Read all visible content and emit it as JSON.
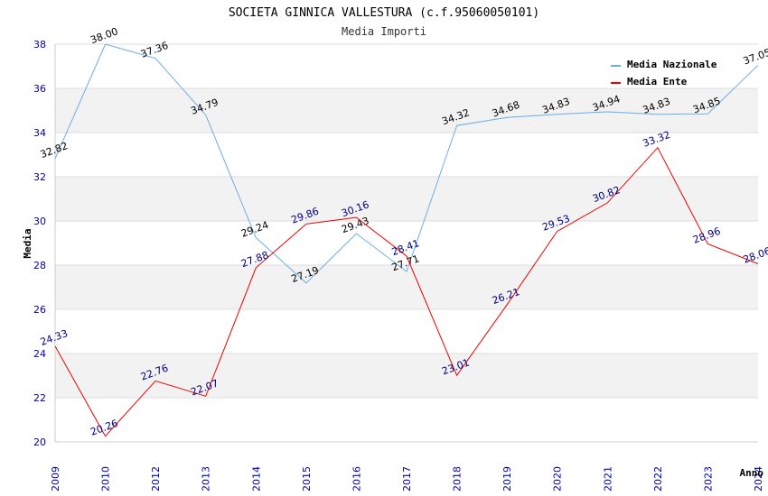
{
  "chart_data": {
    "type": "line",
    "title": "SOCIETA GINNICA VALLESTURA (c.f.95060050101)",
    "subtitle": "Media Importi",
    "xlabel": "Anno",
    "ylabel": "Media",
    "ylim": [
      20,
      38
    ],
    "yticks": [
      20,
      22,
      24,
      26,
      28,
      30,
      32,
      34,
      36,
      38
    ],
    "grid": true,
    "legend_position": "top-right",
    "categories": [
      "2009",
      "2010",
      "2012",
      "2013",
      "2014",
      "2015",
      "2016",
      "2017",
      "2018",
      "2019",
      "2020",
      "2021",
      "2022",
      "2023",
      "2024"
    ],
    "series": [
      {
        "name": "Media Nazionale",
        "color": "#6aaee6",
        "values": [
          32.82,
          38.0,
          37.36,
          34.79,
          29.24,
          27.19,
          29.43,
          27.71,
          34.32,
          34.68,
          34.83,
          34.94,
          34.83,
          34.85,
          37.05
        ],
        "labels": [
          "32.82",
          "38.00",
          "37.36",
          "34.79",
          "29.24",
          "27.19",
          "29.43",
          "27.71",
          "34.32",
          "34.68",
          "34.83",
          "34.94",
          "34.83",
          "34.85",
          "37.05"
        ]
      },
      {
        "name": "Media Ente",
        "color": "#ee0000",
        "values": [
          24.33,
          20.26,
          22.76,
          22.07,
          27.88,
          29.86,
          30.16,
          28.41,
          23.01,
          26.21,
          29.53,
          30.82,
          33.32,
          28.96,
          28.06
        ],
        "labels": [
          "24.33",
          "20.26",
          "22.76",
          "22.07",
          "27.88",
          "29.86",
          "30.16",
          "28.41",
          "23.01",
          "26.21",
          "29.53",
          "30.82",
          "33.32",
          "28.96",
          "28.06"
        ]
      }
    ]
  }
}
